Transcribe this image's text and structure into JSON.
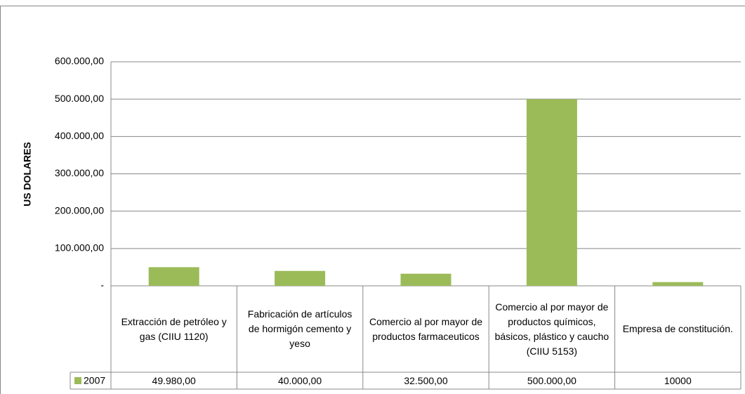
{
  "chart_data": {
    "type": "bar",
    "y_axis_label": "US DOLARES",
    "categories": [
      "Extracción de petróleo y gas (CIIU 1120)",
      "Fabricación de artículos de hormigón cemento y yeso",
      "Comercio al por mayor de productos farmaceuticos",
      "Comercio al por mayor de productos químicos, básicos, plástico y caucho (CIIU 5153)",
      "Empresa de constitución."
    ],
    "series": [
      {
        "name": "2007",
        "color": "#9bbb59",
        "values": [
          49980,
          40000,
          32500,
          500000,
          10000
        ],
        "value_labels": [
          "49.980,00",
          "40.000,00",
          "32.500,00",
          "500.000,00",
          "10000"
        ]
      }
    ],
    "ylim": [
      0,
      600000
    ],
    "yticks": [
      {
        "value": 0,
        "label": "-"
      },
      {
        "value": 100000,
        "label": "100.000,00"
      },
      {
        "value": 200000,
        "label": "200.000,00"
      },
      {
        "value": 300000,
        "label": "300.000,00"
      },
      {
        "value": 400000,
        "label": "400.000,00"
      },
      {
        "value": 500000,
        "label": "500.000,00"
      },
      {
        "value": 600000,
        "label": "600.000,00"
      }
    ],
    "grid": true
  }
}
